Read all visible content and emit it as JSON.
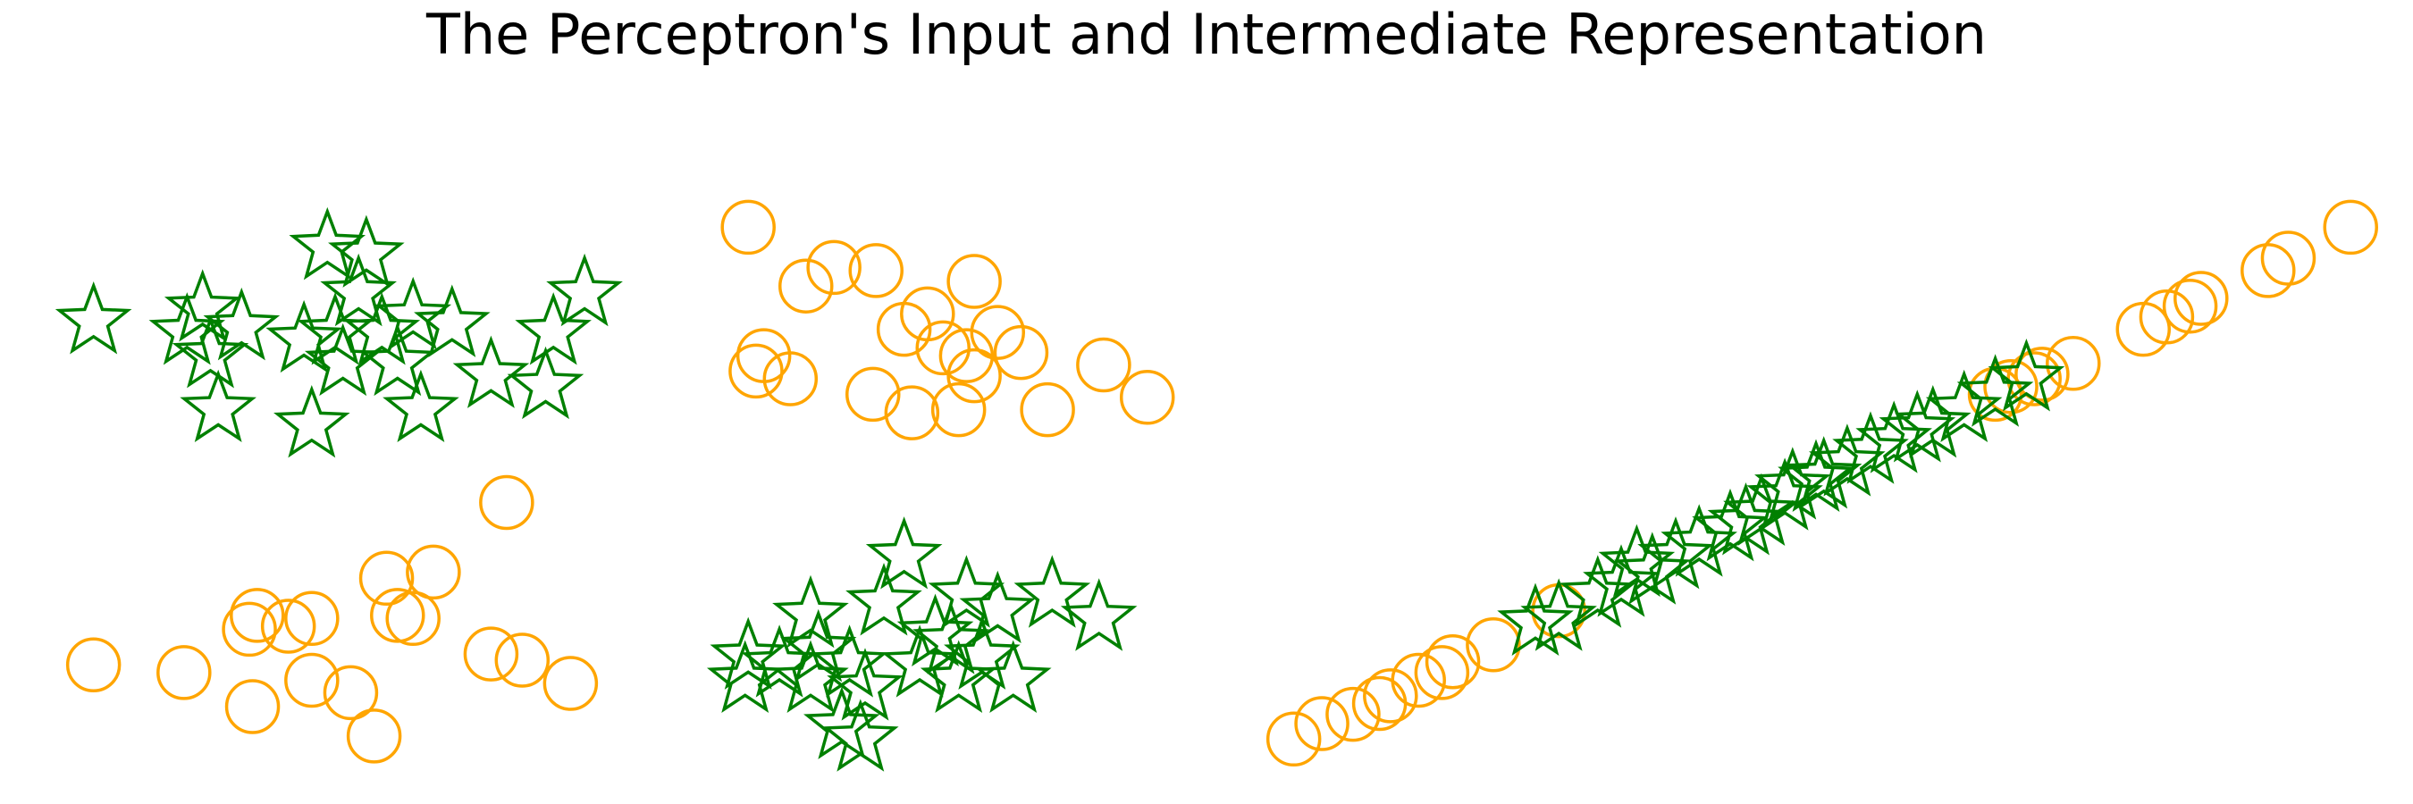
{
  "title": "The Perceptron's Input and Intermediate Representation",
  "chart_data": [
    {
      "type": "scatter",
      "xlim": [
        20,
        760
      ],
      "ylim": [
        0,
        400
      ],
      "series": [
        {
          "color": "green",
          "marker": "star",
          "x": [
            60,
            130,
            120,
            155,
            135,
            140,
            200,
            210,
            235,
            230,
            215,
            245,
            265,
            270,
            255,
            290,
            315,
            350,
            355,
            375,
            195,
            220,
            580,
            567,
            520,
            480,
            478,
            500,
            525,
            545,
            555,
            552,
            540,
            600,
            620,
            640,
            675,
            705,
            615,
            650,
            630,
            590,
            610,
            520
          ],
          "y": [
            312,
            320,
            305,
            308,
            290,
            255,
            245,
            360,
            355,
            330,
            305,
            305,
            315,
            255,
            285,
            310,
            277,
            270,
            305,
            330,
            300,
            285,
            160,
            130,
            122,
            95,
            80,
            90,
            100,
            90,
            75,
            42,
            50,
            110,
            135,
            125,
            135,
            120,
            80,
            80,
            95,
            90,
            105,
            80
          ]
        },
        {
          "color": "orange",
          "marker": "circle",
          "x": [
            480,
            535,
            562,
            517,
            625,
            580,
            595,
            640,
            655,
            620,
            490,
            485,
            507,
            560,
            585,
            615,
            625,
            672,
            708,
            736,
            605,
            325,
            60,
            118,
            162,
            165,
            160,
            185,
            200,
            200,
            225,
            240,
            248,
            278,
            255,
            265,
            315,
            335,
            366
          ],
          "y": [
            373,
            347,
            345,
            335,
            338,
            307,
            317,
            305,
            292,
            290,
            290,
            280,
            275,
            265,
            253,
            255,
            277,
            255,
            284,
            263,
            295,
            195,
            90,
            85,
            63,
            122,
            113,
            115,
            120,
            80,
            72,
            44,
            146,
            150,
            122,
            120,
            97,
            93,
            78
          ]
        }
      ]
    },
    {
      "type": "scatter",
      "xlim": [
        800,
        1540
      ],
      "ylim": [
        0,
        400
      ],
      "series": [
        {
          "color": "orange",
          "marker": "circle",
          "x": [
            830,
            848,
            868,
            885,
            892,
            910,
            925,
            932,
            958,
            1000,
            1290,
            1310,
            1330,
            1375,
            1390,
            1405,
            1412,
            1455,
            1468,
            1508,
            1305,
            1280
          ],
          "y": [
            42,
            52,
            58,
            65,
            70,
            80,
            85,
            92,
            103,
            125,
            270,
            278,
            285,
            307,
            315,
            322,
            327,
            345,
            353,
            373,
            275,
            265
          ]
        },
        {
          "color": "green",
          "marker": "star",
          "x": [
            1000,
            985,
            1040,
            1060,
            1075,
            1090,
            1110,
            1130,
            1145,
            1150,
            1170,
            1185,
            1200,
            1215,
            1240,
            1260,
            1280,
            1300,
            1050,
            1120,
            1165,
            1230,
            1025
          ],
          "y": [
            120,
            117,
            142,
            150,
            160,
            168,
            178,
            188,
            198,
            205,
            212,
            220,
            228,
            235,
            245,
            255,
            265,
            275,
            155,
            182,
            210,
            242,
            135
          ]
        }
      ]
    }
  ]
}
